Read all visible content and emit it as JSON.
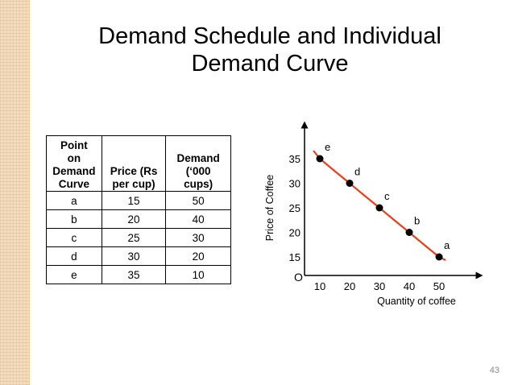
{
  "slide": {
    "title_line1": "Demand Schedule and Individual",
    "title_line2": "Demand Curve",
    "page_number": "43"
  },
  "table": {
    "headers": [
      "Point on Demand Curve",
      "Price (Rs per cup)",
      "Demand (‘000 cups)"
    ],
    "header_lines": [
      [
        "Point",
        "on",
        "Demand",
        "Curve"
      ],
      [
        "Price (Rs",
        "per cup)"
      ],
      [
        "Demand",
        "(‘000",
        "cups)"
      ]
    ],
    "rows": [
      [
        "a",
        "15",
        "50"
      ],
      [
        "b",
        "20",
        "40"
      ],
      [
        "c",
        "25",
        "30"
      ],
      [
        "d",
        "30",
        "20"
      ],
      [
        "e",
        "35",
        "10"
      ]
    ]
  },
  "chart_data": {
    "type": "line",
    "title": "",
    "xlabel": "Quantity of coffee",
    "ylabel": "Price of Coffee",
    "origin_label": "O",
    "x_ticks": [
      "10",
      "20",
      "30",
      "40",
      "50"
    ],
    "y_ticks": [
      "15",
      "20",
      "25",
      "30",
      "35"
    ],
    "points": [
      {
        "label": "e",
        "x": 10,
        "y": 35
      },
      {
        "label": "d",
        "x": 20,
        "y": 30
      },
      {
        "label": "c",
        "x": 30,
        "y": 25
      },
      {
        "label": "b",
        "x": 40,
        "y": 20
      },
      {
        "label": "a",
        "x": 50,
        "y": 15
      }
    ],
    "curve_color": "#e8401c",
    "point_color": "#000000"
  }
}
